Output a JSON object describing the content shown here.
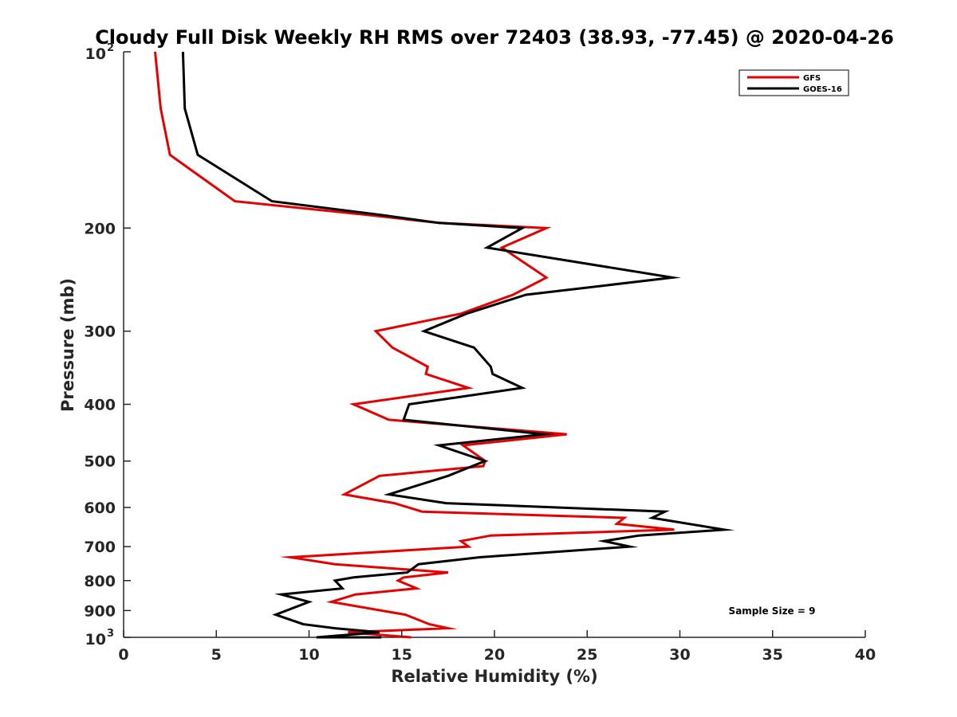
{
  "chart_data": {
    "type": "line",
    "title": "Cloudy Full Disk Weekly RH RMS over 72403 (38.93, -77.45) @ 2020-04-26",
    "xlabel": "Relative Humidity (%)",
    "ylabel": "Pressure (mb)",
    "xlim": [
      0,
      40
    ],
    "ylim": [
      100,
      1000
    ],
    "y_scale": "log",
    "y_reversed": true,
    "grid": false,
    "legend_position": "top-right",
    "x_ticks": [
      "0",
      "5",
      "10",
      "15",
      "20",
      "25",
      "30",
      "35",
      "40"
    ],
    "y_ticks": [
      {
        "value": 100,
        "base": "10",
        "exp": "2",
        "label": ""
      },
      {
        "value": 200,
        "base": "",
        "exp": "",
        "label": "200"
      },
      {
        "value": 300,
        "base": "",
        "exp": "",
        "label": "300"
      },
      {
        "value": 400,
        "base": "",
        "exp": "",
        "label": "400"
      },
      {
        "value": 500,
        "base": "",
        "exp": "",
        "label": "500"
      },
      {
        "value": 600,
        "base": "",
        "exp": "",
        "label": "600"
      },
      {
        "value": 700,
        "base": "",
        "exp": "",
        "label": "700"
      },
      {
        "value": 800,
        "base": "",
        "exp": "",
        "label": "800"
      },
      {
        "value": 900,
        "base": "",
        "exp": "",
        "label": "900"
      },
      {
        "value": 1000,
        "base": "10",
        "exp": "3",
        "label": ""
      }
    ],
    "annotation": "Sample Size = 9",
    "series": [
      {
        "name": "GFS",
        "color": "#e60000",
        "points": [
          [
            1.7,
            100
          ],
          [
            2.0,
            125
          ],
          [
            2.5,
            150
          ],
          [
            6.0,
            180
          ],
          [
            13.2,
            190
          ],
          [
            17.0,
            196
          ],
          [
            22.8,
            200
          ],
          [
            20.4,
            216
          ],
          [
            22.8,
            243
          ],
          [
            21.0,
            260
          ],
          [
            18.2,
            280
          ],
          [
            13.6,
            300
          ],
          [
            14.5,
            320
          ],
          [
            16.4,
            345
          ],
          [
            16.3,
            355
          ],
          [
            18.6,
            375
          ],
          [
            12.4,
            400
          ],
          [
            14.3,
            425
          ],
          [
            23.9,
            450
          ],
          [
            18.3,
            470
          ],
          [
            19.5,
            500
          ],
          [
            19.4,
            510
          ],
          [
            13.8,
            530
          ],
          [
            11.9,
            570
          ],
          [
            14.6,
            590
          ],
          [
            16.1,
            610
          ],
          [
            27.0,
            625
          ],
          [
            26.6,
            640
          ],
          [
            29.7,
            655
          ],
          [
            19.8,
            670
          ],
          [
            18.2,
            685
          ],
          [
            18.6,
            700
          ],
          [
            9.0,
            730
          ],
          [
            11.4,
            750
          ],
          [
            17.5,
            775
          ],
          [
            15.1,
            790
          ],
          [
            14.8,
            800
          ],
          [
            15.8,
            825
          ],
          [
            12.5,
            845
          ],
          [
            11.2,
            870
          ],
          [
            15.2,
            915
          ],
          [
            16.5,
            950
          ],
          [
            17.5,
            965
          ],
          [
            12.1,
            980
          ],
          [
            15.5,
            1000
          ]
        ]
      },
      {
        "name": "GOES-16",
        "color": "#000000",
        "points": [
          [
            3.2,
            100
          ],
          [
            3.3,
            125
          ],
          [
            4.0,
            150
          ],
          [
            8.0,
            180
          ],
          [
            13.9,
            190
          ],
          [
            17.0,
            196
          ],
          [
            21.5,
            200
          ],
          [
            19.6,
            216
          ],
          [
            29.6,
            243
          ],
          [
            21.7,
            260
          ],
          [
            18.5,
            280
          ],
          [
            16.2,
            300
          ],
          [
            18.9,
            320
          ],
          [
            19.8,
            345
          ],
          [
            19.9,
            355
          ],
          [
            21.5,
            375
          ],
          [
            15.4,
            400
          ],
          [
            15.1,
            425
          ],
          [
            22.7,
            450
          ],
          [
            17.0,
            470
          ],
          [
            19.5,
            500
          ],
          [
            18.8,
            510
          ],
          [
            17.5,
            530
          ],
          [
            14.3,
            570
          ],
          [
            17.4,
            590
          ],
          [
            29.2,
            610
          ],
          [
            28.5,
            625
          ],
          [
            32.4,
            655
          ],
          [
            27.8,
            670
          ],
          [
            25.9,
            685
          ],
          [
            27.3,
            700
          ],
          [
            19.2,
            730
          ],
          [
            15.9,
            750
          ],
          [
            15.3,
            775
          ],
          [
            12.4,
            790
          ],
          [
            11.4,
            800
          ],
          [
            11.8,
            825
          ],
          [
            8.5,
            845
          ],
          [
            10.0,
            870
          ],
          [
            8.2,
            915
          ],
          [
            9.7,
            950
          ],
          [
            11.4,
            965
          ],
          [
            13.8,
            980
          ],
          [
            10.4,
            1000
          ],
          [
            13.9,
            1000
          ]
        ]
      }
    ]
  }
}
